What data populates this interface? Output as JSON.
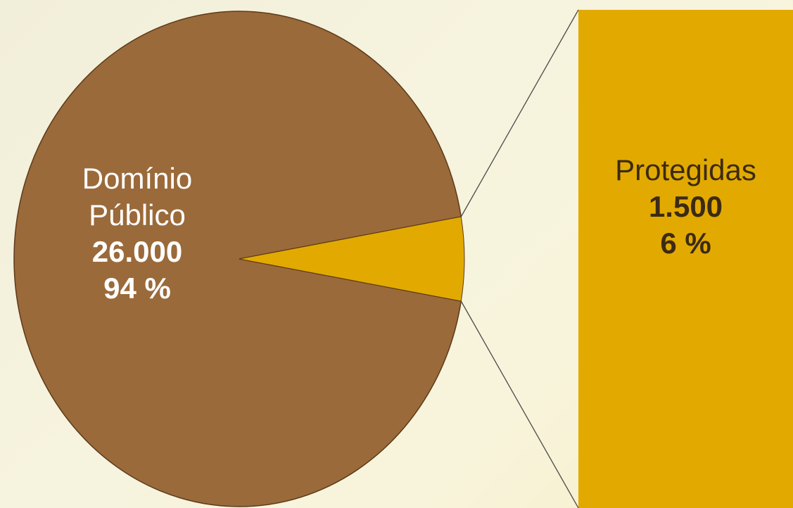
{
  "chart_data": {
    "type": "pie",
    "subtype": "pie-of-bar",
    "slices": [
      {
        "name_lines": [
          "Domínio",
          "Público"
        ],
        "value": 26000,
        "value_label": "26.000",
        "percent": 94,
        "percent_label": "94 %",
        "color": "#9b6a3a"
      },
      {
        "name_lines": [
          "Protegidas"
        ],
        "value": 1500,
        "value_label": "1.500",
        "percent": 6,
        "percent_label": "6 %",
        "color": "#e2aa00"
      }
    ],
    "connector_color": "#4a4a4a"
  }
}
